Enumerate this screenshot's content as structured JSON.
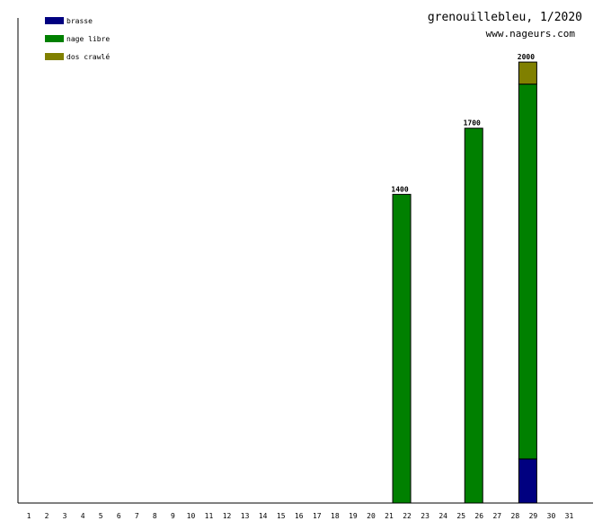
{
  "header": {
    "title": "grenouillebleu, 1/2020",
    "site": "www.nageurs.com"
  },
  "colors": {
    "background": "#ffffff",
    "axis": "#000000",
    "bar_outline": "#000000"
  },
  "chart_data": {
    "type": "bar",
    "stacked": true,
    "title": "grenouillebleu, 1/2020",
    "xlabel": "",
    "ylabel": "",
    "categories": [
      "1",
      "2",
      "3",
      "4",
      "5",
      "6",
      "7",
      "8",
      "9",
      "10",
      "11",
      "12",
      "13",
      "14",
      "15",
      "16",
      "17",
      "18",
      "19",
      "20",
      "21",
      "22",
      "23",
      "24",
      "25",
      "26",
      "27",
      "28",
      "29",
      "30",
      "31"
    ],
    "ylim": [
      0,
      2200
    ],
    "grid": false,
    "legend_position": "top-left",
    "series": [
      {
        "name": "brasse",
        "color": "#000080",
        "values": [
          0,
          0,
          0,
          0,
          0,
          0,
          0,
          0,
          0,
          0,
          0,
          0,
          0,
          0,
          0,
          0,
          0,
          0,
          0,
          0,
          0,
          0,
          0,
          0,
          0,
          0,
          0,
          0,
          200,
          0,
          0
        ]
      },
      {
        "name": "nage libre",
        "color": "#008000",
        "values": [
          0,
          0,
          0,
          0,
          0,
          0,
          0,
          0,
          0,
          0,
          0,
          0,
          0,
          0,
          0,
          0,
          0,
          0,
          0,
          0,
          0,
          1400,
          0,
          0,
          0,
          1700,
          0,
          0,
          1700,
          0,
          0
        ]
      },
      {
        "name": "dos crawlé",
        "color": "#808000",
        "values": [
          0,
          0,
          0,
          0,
          0,
          0,
          0,
          0,
          0,
          0,
          0,
          0,
          0,
          0,
          0,
          0,
          0,
          0,
          0,
          0,
          0,
          0,
          0,
          0,
          0,
          0,
          0,
          0,
          100,
          0,
          0
        ]
      }
    ],
    "totals": [
      null,
      null,
      null,
      null,
      null,
      null,
      null,
      null,
      null,
      null,
      null,
      null,
      null,
      null,
      null,
      null,
      null,
      null,
      null,
      null,
      null,
      "1400",
      null,
      null,
      null,
      "1700",
      null,
      null,
      "2000",
      null,
      null
    ]
  }
}
